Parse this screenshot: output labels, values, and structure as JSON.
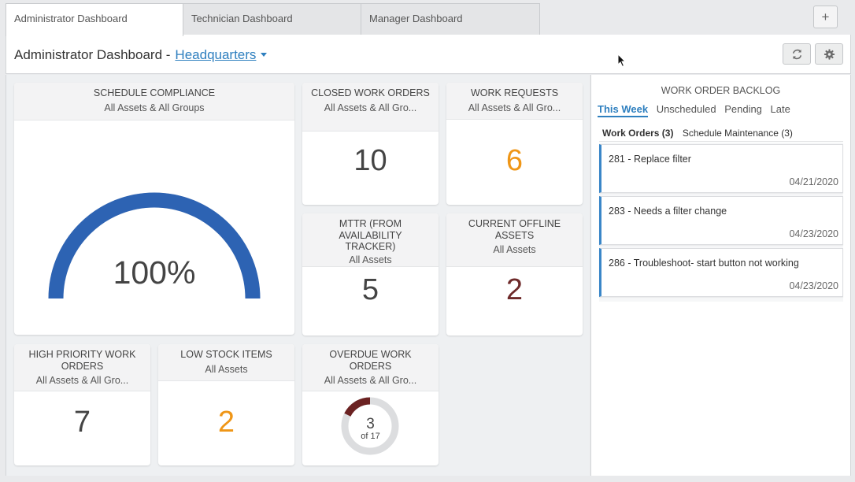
{
  "tabs": [
    {
      "label": "Administrator Dashboard",
      "active": true
    },
    {
      "label": "Technician Dashboard",
      "active": false
    },
    {
      "label": "Manager Dashboard",
      "active": false
    }
  ],
  "add_tab_label": "+",
  "header": {
    "title": "Administrator Dashboard -",
    "location": "Headquarters"
  },
  "widgets": {
    "schedule_compliance": {
      "title": "SCHEDULE COMPLIANCE",
      "subtitle": "All Assets & All Groups",
      "value": "100%",
      "percent": 100
    },
    "closed_work_orders": {
      "title": "CLOSED WORK ORDERS",
      "subtitle": "All Assets & All Gro...",
      "value": "10"
    },
    "work_requests": {
      "title": "WORK REQUESTS",
      "subtitle": "All Assets & All Gro...",
      "value": "6"
    },
    "mttr": {
      "title": "MTTR (FROM AVAILABILITY TRACKER)",
      "subtitle": "All Assets",
      "value": "5"
    },
    "current_offline_assets": {
      "title": "CURRENT OFFLINE ASSETS",
      "subtitle": "All Assets",
      "value": "2"
    },
    "high_priority_work_orders": {
      "title": "HIGH PRIORITY WORK ORDERS",
      "subtitle": "All Assets & All Gro...",
      "value": "7"
    },
    "low_stock_items": {
      "title": "LOW STOCK ITEMS",
      "subtitle": "All Assets",
      "value": "2"
    },
    "overdue_work_orders": {
      "title": "OVERDUE WORK ORDERS",
      "subtitle": "All Assets & All Gro...",
      "value": "3",
      "total_label": "of 17",
      "count": 3,
      "total": 17
    }
  },
  "backlog": {
    "title": "WORK ORDER BACKLOG",
    "tabs": [
      "This Week",
      "Unscheduled",
      "Pending",
      "Late"
    ],
    "subtabs": [
      "Work Orders (3)",
      "Schedule Maintenance (3)"
    ],
    "items": [
      {
        "title": "281 - Replace filter",
        "date": "04/21/2020"
      },
      {
        "title": "283 - Needs a filter change",
        "date": "04/23/2020"
      },
      {
        "title": "286 - Troubleshoot- start button not working",
        "date": "04/23/2020"
      }
    ]
  },
  "colors": {
    "accent": "#2e7fbf",
    "gauge": "#2d63b3",
    "orange": "#ef9617",
    "dark_red": "#6e2a2a",
    "donut_track": "#dcdddf",
    "donut_fill": "#6b2222"
  },
  "icons": {
    "refresh": "refresh-icon",
    "settings": "gear-icon",
    "cursor": "mouse-pointer-icon"
  }
}
